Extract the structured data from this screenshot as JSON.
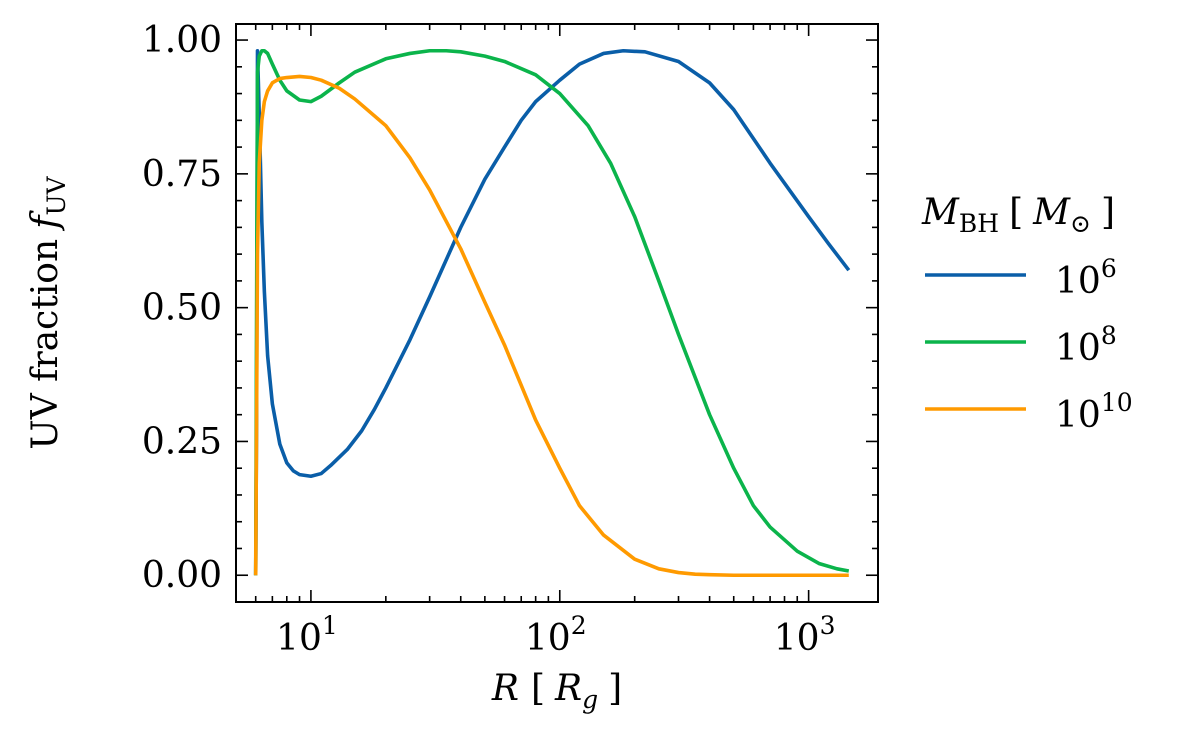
{
  "chart_data": {
    "type": "line",
    "title": "",
    "xlabel": {
      "base": "R",
      "bracket_open": "[",
      "unit_base": "R",
      "unit_sub": "g",
      "bracket_close": "]"
    },
    "ylabel": {
      "text": "UV fraction",
      "sym": "f",
      "sub": "UV"
    },
    "xscale": "log",
    "xlim": [
      5,
      1900
    ],
    "ylim": [
      -0.05,
      1.03
    ],
    "xticks": [
      {
        "value": 10,
        "base": "10",
        "exp": "1"
      },
      {
        "value": 100,
        "base": "10",
        "exp": "2"
      },
      {
        "value": 1000,
        "base": "10",
        "exp": "3"
      }
    ],
    "yticks": [
      {
        "value": 0.0,
        "label": "0.00"
      },
      {
        "value": 0.25,
        "label": "0.25"
      },
      {
        "value": 0.5,
        "label": "0.50"
      },
      {
        "value": 0.75,
        "label": "0.75"
      },
      {
        "value": 1.0,
        "label": "1.00"
      }
    ],
    "legend": {
      "placement": "outside-right",
      "title": {
        "sym": "M",
        "sub": "BH",
        "bracket_open": "[",
        "unit_sym": "M",
        "unit_sub": "⊙",
        "bracket_close": "]"
      }
    },
    "series": [
      {
        "name": "10^6",
        "label_base": "10",
        "label_exp": "6",
        "color": "#0a5ea8",
        "x": [
          6.0,
          6.05,
          6.1,
          6.2,
          6.35,
          6.5,
          6.7,
          7.0,
          7.5,
          8.0,
          8.5,
          9.0,
          10.0,
          11.0,
          12.0,
          14.0,
          16.0,
          18.0,
          20.0,
          25.0,
          30.0,
          40.0,
          50.0,
          60.0,
          70.0,
          80.0,
          100.0,
          120.0,
          150.0,
          180.0,
          220.0,
          300.0,
          400.0,
          500.0,
          700.0,
          1000.0,
          1200.0,
          1450.0
        ],
        "y": [
          0.0,
          0.3,
          0.98,
          0.86,
          0.66,
          0.53,
          0.41,
          0.32,
          0.245,
          0.21,
          0.195,
          0.188,
          0.185,
          0.19,
          0.205,
          0.235,
          0.27,
          0.31,
          0.35,
          0.44,
          0.52,
          0.65,
          0.74,
          0.8,
          0.85,
          0.885,
          0.925,
          0.955,
          0.975,
          0.98,
          0.978,
          0.96,
          0.92,
          0.87,
          0.77,
          0.67,
          0.62,
          0.57
        ]
      },
      {
        "name": "10^8",
        "label_base": "10",
        "label_exp": "8",
        "color": "#0bb44b",
        "x": [
          6.0,
          6.05,
          6.1,
          6.2,
          6.35,
          6.5,
          6.7,
          7.0,
          7.5,
          8.0,
          9.0,
          10.0,
          11.0,
          13.0,
          15.0,
          20.0,
          25.0,
          30.0,
          35.0,
          40.0,
          50.0,
          60.0,
          80.0,
          100.0,
          130.0,
          160.0,
          200.0,
          250.0,
          300.0,
          400.0,
          500.0,
          600.0,
          700.0,
          900.0,
          1100.0,
          1300.0,
          1450.0
        ],
        "y": [
          0.0,
          0.5,
          0.94,
          0.97,
          0.98,
          0.98,
          0.975,
          0.955,
          0.925,
          0.905,
          0.888,
          0.885,
          0.895,
          0.92,
          0.94,
          0.965,
          0.975,
          0.98,
          0.98,
          0.978,
          0.97,
          0.96,
          0.935,
          0.9,
          0.84,
          0.77,
          0.67,
          0.55,
          0.45,
          0.3,
          0.2,
          0.13,
          0.09,
          0.045,
          0.022,
          0.012,
          0.008
        ]
      },
      {
        "name": "10^10",
        "label_base": "10",
        "label_exp": "10",
        "color": "#ff9a00",
        "x": [
          6.0,
          6.05,
          6.1,
          6.2,
          6.35,
          6.5,
          6.7,
          7.0,
          7.5,
          8.0,
          9.0,
          10.0,
          11.0,
          13.0,
          15.0,
          20.0,
          25.0,
          30.0,
          40.0,
          50.0,
          60.0,
          80.0,
          100.0,
          120.0,
          150.0,
          200.0,
          250.0,
          300.0,
          350.0,
          400.0,
          500.0,
          700.0,
          1000.0,
          1450.0
        ],
        "y": [
          0.0,
          0.3,
          0.6,
          0.77,
          0.85,
          0.885,
          0.905,
          0.92,
          0.928,
          0.93,
          0.932,
          0.93,
          0.925,
          0.91,
          0.89,
          0.84,
          0.78,
          0.72,
          0.61,
          0.51,
          0.43,
          0.29,
          0.2,
          0.13,
          0.075,
          0.03,
          0.012,
          0.005,
          0.002,
          0.001,
          0.0,
          0.0,
          0.0,
          0.0
        ]
      }
    ]
  }
}
